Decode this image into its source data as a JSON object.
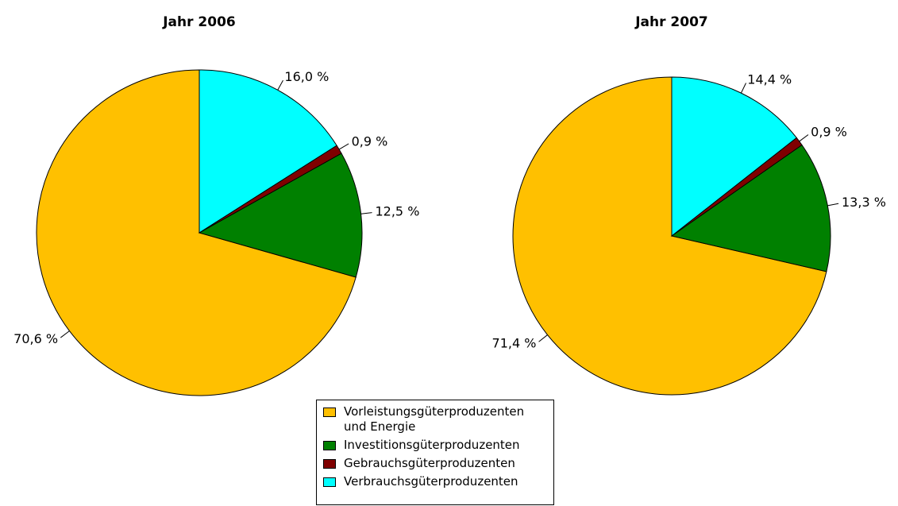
{
  "chart_data": [
    {
      "type": "pie",
      "title": "Jahr 2006",
      "categories": [
        "Vorleistungsgüterproduzenten und Energie",
        "Investitionsgüterproduzenten",
        "Gebrauchsgüterproduzenten",
        "Verbrauchsgüterproduzenten"
      ],
      "values": [
        70.6,
        12.5,
        0.9,
        16.0
      ],
      "value_labels": [
        "70,6 %",
        "12,5 %",
        "0,9 %",
        "16,0 %"
      ],
      "colors": [
        "#ffc000",
        "#008000",
        "#800000",
        "#00ffff"
      ]
    },
    {
      "type": "pie",
      "title": "Jahr 2007",
      "categories": [
        "Vorleistungsgüterproduzenten und Energie",
        "Investitionsgüterproduzenten",
        "Gebrauchsgüterproduzenten",
        "Verbrauchsgüterproduzenten"
      ],
      "values": [
        71.4,
        13.3,
        0.9,
        14.4
      ],
      "value_labels": [
        "71,4 %",
        "13,3 %",
        "0,9 %",
        "14,4 %"
      ],
      "colors": [
        "#ffc000",
        "#008000",
        "#800000",
        "#00ffff"
      ]
    }
  ]
}
